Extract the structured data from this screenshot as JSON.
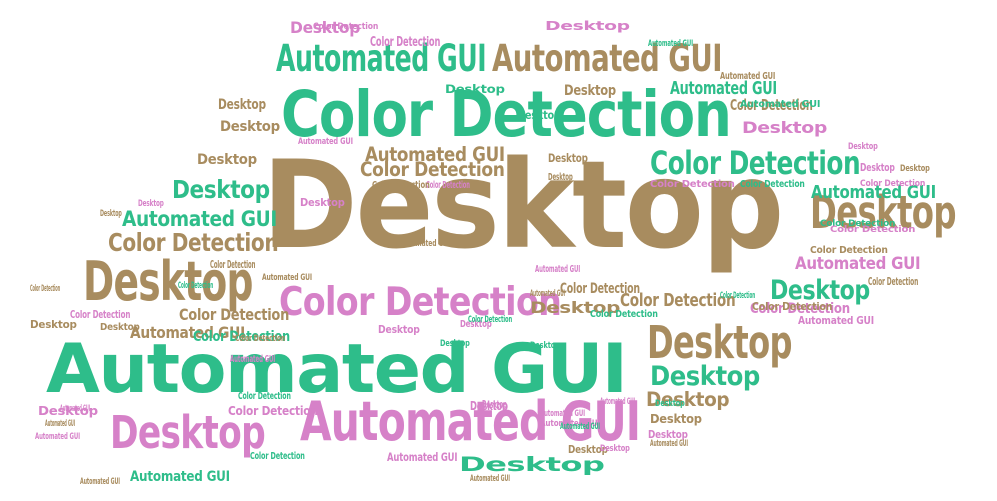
{
  "palette": {
    "tan": "#a88c5f",
    "green": "#2ebd8a",
    "pink": "#d681c8"
  },
  "words": [
    {
      "text": "Desktop",
      "color": "tan"
    },
    {
      "text": "Automated GUI",
      "color": "green"
    },
    {
      "text": "Color Detection",
      "color": "green"
    },
    {
      "text": "Color Detection",
      "color": "pink"
    },
    {
      "text": "Automated GUI",
      "color": "pink"
    },
    {
      "text": "Automated GUI",
      "color": "green"
    },
    {
      "text": "Automated GUI",
      "color": "tan"
    },
    {
      "text": "Desktop",
      "color": "tan"
    },
    {
      "text": "Desktop",
      "color": "tan"
    },
    {
      "text": "Desktop",
      "color": "tan"
    },
    {
      "text": "Desktop",
      "color": "pink"
    },
    {
      "text": "Color Detection",
      "color": "green"
    },
    {
      "text": "Color Detection",
      "color": "tan"
    },
    {
      "text": "Color Detection",
      "color": "tan"
    },
    {
      "text": "Color Detection",
      "color": "tan"
    },
    {
      "text": "Desktop",
      "color": "green"
    },
    {
      "text": "Desktop",
      "color": "green"
    },
    {
      "text": "Desktop",
      "color": "green"
    },
    {
      "text": "Desktop",
      "color": "tan"
    },
    {
      "text": "Automated GUI",
      "color": "green"
    },
    {
      "text": "Automated GUI",
      "color": "tan"
    },
    {
      "text": "Automated GUI",
      "color": "green"
    },
    {
      "text": "Automated GUI",
      "color": "green"
    },
    {
      "text": "Automated GUI",
      "color": "pink"
    },
    {
      "text": "Automated GUI",
      "color": "tan"
    },
    {
      "text": "Color Detection",
      "color": "tan"
    },
    {
      "text": "Color Detection",
      "color": "green"
    },
    {
      "text": "Desktop",
      "color": "green"
    },
    {
      "text": "Desktop",
      "color": "pink"
    },
    {
      "text": "Desktop",
      "color": "pink"
    },
    {
      "text": "Desktop",
      "color": "tan"
    },
    {
      "text": "Color Detection",
      "color": "pink"
    },
    {
      "text": "Color Detection",
      "color": "tan"
    },
    {
      "text": "Color Detection",
      "color": "pink"
    },
    {
      "text": "Color Detection",
      "color": "tan"
    },
    {
      "text": "Color Detection",
      "color": "pink"
    },
    {
      "text": "Automated GUI",
      "color": "pink"
    },
    {
      "text": "Automated GUI",
      "color": "green"
    },
    {
      "text": "Automated GUI",
      "color": "pink"
    },
    {
      "text": "Automated GUI",
      "color": "green"
    },
    {
      "text": "Desktop",
      "color": "tan"
    },
    {
      "text": "Desktop",
      "color": "tan"
    },
    {
      "text": "Desktop",
      "color": "green"
    },
    {
      "text": "Desktop",
      "color": "tan"
    },
    {
      "text": "Desktop",
      "color": "green"
    },
    {
      "text": "Desktop",
      "color": "tan"
    },
    {
      "text": "Desktop",
      "color": "pink"
    },
    {
      "text": "Desktop",
      "color": "tan"
    },
    {
      "text": "Desktop",
      "color": "pink"
    },
    {
      "text": "Desktop",
      "color": "tan"
    },
    {
      "text": "Desktop",
      "color": "pink"
    },
    {
      "text": "Desktop",
      "color": "tan"
    },
    {
      "text": "Desktop",
      "color": "pink"
    },
    {
      "text": "Desktop",
      "color": "pink"
    },
    {
      "text": "Desktop",
      "color": "tan"
    },
    {
      "text": "Desktop",
      "color": "tan"
    },
    {
      "text": "Desktop",
      "color": "tan"
    },
    {
      "text": "Desktop",
      "color": "pink"
    },
    {
      "text": "Desktop",
      "color": "pink"
    },
    {
      "text": "Desktop",
      "color": "green"
    },
    {
      "text": "Desktop",
      "color": "green"
    },
    {
      "text": "Desktop",
      "color": "pink"
    },
    {
      "text": "Desktop",
      "color": "pink"
    },
    {
      "text": "Desktop",
      "color": "pink"
    },
    {
      "text": "Desktop",
      "color": "tan"
    },
    {
      "text": "Desktop",
      "color": "green"
    },
    {
      "text": "Desktop",
      "color": "pink"
    },
    {
      "text": "Desktop",
      "color": "tan"
    },
    {
      "text": "Desktop",
      "color": "pink"
    },
    {
      "text": "Color Detection",
      "color": "tan"
    },
    {
      "text": "Color Detection",
      "color": "green"
    },
    {
      "text": "Color Detection",
      "color": "tan"
    },
    {
      "text": "Color Detection",
      "color": "tan"
    },
    {
      "text": "Color Detection",
      "color": "green"
    },
    {
      "text": "Color Detection",
      "color": "green"
    },
    {
      "text": "Color Detection",
      "color": "pink"
    },
    {
      "text": "Color Detection",
      "color": "pink"
    },
    {
      "text": "Color Detection",
      "color": "tan"
    },
    {
      "text": "Color Detection",
      "color": "green"
    },
    {
      "text": "Color Detection",
      "color": "pink"
    },
    {
      "text": "Color Detection",
      "color": "green"
    },
    {
      "text": "Color Detection",
      "color": "green"
    },
    {
      "text": "Color Detection",
      "color": "green"
    },
    {
      "text": "Color Detection",
      "color": "tan"
    },
    {
      "text": "Color Detection",
      "color": "green"
    },
    {
      "text": "Color Detection",
      "color": "pink"
    },
    {
      "text": "Color Detection",
      "color": "pink"
    },
    {
      "text": "Color Detection",
      "color": "tan"
    },
    {
      "text": "Color Detection",
      "color": "pink"
    },
    {
      "text": "Color Detection",
      "color": "tan"
    },
    {
      "text": "Automated GUI",
      "color": "pink"
    },
    {
      "text": "Automated GUI",
      "color": "tan"
    },
    {
      "text": "Automated GUI",
      "color": "green"
    },
    {
      "text": "Automated GUI",
      "color": "pink"
    },
    {
      "text": "Automated GUI",
      "color": "tan"
    },
    {
      "text": "Automated GUI",
      "color": "pink"
    },
    {
      "text": "Automated GUI",
      "color": "tan"
    },
    {
      "text": "Automated GUI",
      "color": "pink"
    },
    {
      "text": "Automated GUI",
      "color": "pink"
    },
    {
      "text": "Automated GUI",
      "color": "tan"
    },
    {
      "text": "Automated GUI",
      "color": "pink"
    },
    {
      "text": "Automated GUI",
      "color": "tan"
    },
    {
      "text": "Automated GUI",
      "color": "tan"
    },
    {
      "text": "Automated GUI",
      "color": "pink"
    },
    {
      "text": "Automated GUI",
      "color": "green"
    },
    {
      "text": "Automated GUI",
      "color": "tan"
    },
    {
      "text": "Automated GUI",
      "color": "pink"
    },
    {
      "text": "Automated GUI",
      "color": "tan"
    }
  ]
}
